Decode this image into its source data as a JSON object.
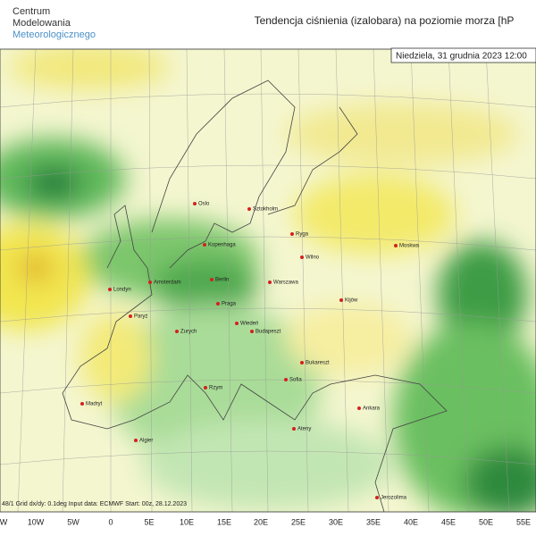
{
  "logo": [
    "Centrum",
    "Modelowania",
    "Meteorologicznego"
  ],
  "title": "Tendencja ciśnienia (izalobara) na poziomie morza  [hP",
  "date": "Niedziela, 31 grudnia 2023 12:00",
  "footer": "48/1  Grid dx/dy: 0.1deg  Input data: ECMWF  Start: 00z, 28.12.2023",
  "lon_labels": [
    "W",
    "10W",
    "5W",
    "0",
    "5E",
    "10E",
    "15E",
    "20E",
    "25E",
    "30E",
    "35E",
    "40E",
    "45E",
    "50E",
    "55E"
  ],
  "cities": [
    "Oslo",
    "Sztokholm",
    "Kopenhaga",
    "Ryga",
    "Moskwa",
    "Wilno",
    "Amsterdam",
    "Berlin",
    "Warszawa",
    "Londyn",
    "Paryż",
    "Praga",
    "Kijów",
    "Zurych",
    "Wiedeń",
    "Budapeszt",
    "Bukareszt",
    "Madryt",
    "Rzym",
    "Sofia",
    "Ankara",
    "Algier",
    "Ateny",
    "Jerozolima"
  ]
}
